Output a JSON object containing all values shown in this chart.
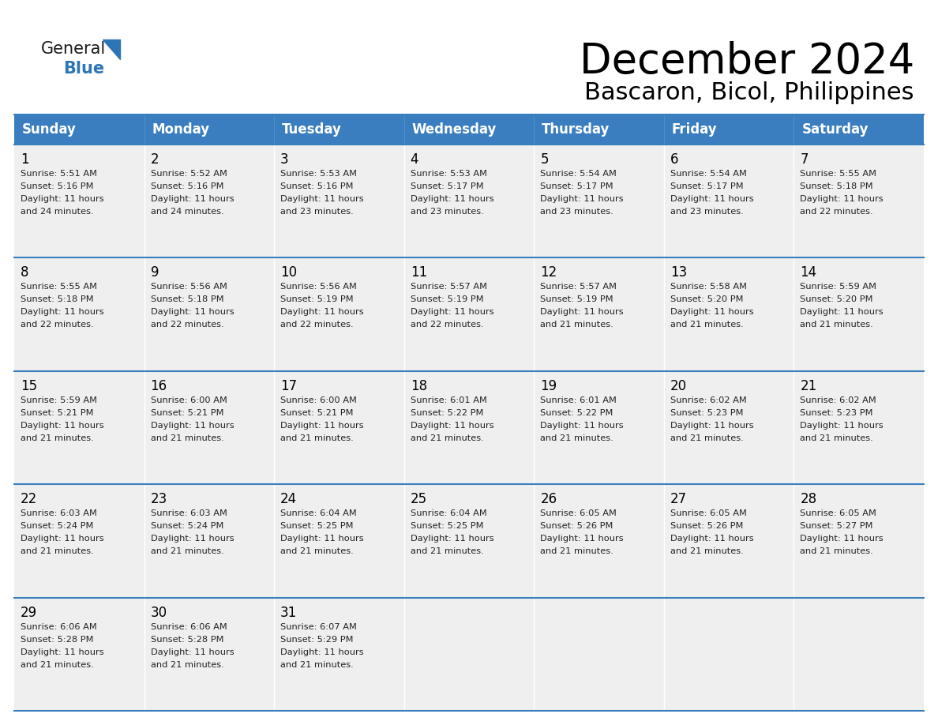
{
  "title": "December 2024",
  "subtitle": "Bascaron, Bicol, Philippines",
  "header_color": "#3a7ebf",
  "header_text_color": "#ffffff",
  "cell_bg_color": "#efefef",
  "border_color": "#3a7ebf",
  "days_of_week": [
    "Sunday",
    "Monday",
    "Tuesday",
    "Wednesday",
    "Thursday",
    "Friday",
    "Saturday"
  ],
  "weeks": [
    [
      {
        "day": 1,
        "sunrise": "5:51 AM",
        "sunset": "5:16 PM",
        "daylight_min": "24"
      },
      {
        "day": 2,
        "sunrise": "5:52 AM",
        "sunset": "5:16 PM",
        "daylight_min": "24"
      },
      {
        "day": 3,
        "sunrise": "5:53 AM",
        "sunset": "5:16 PM",
        "daylight_min": "23"
      },
      {
        "day": 4,
        "sunrise": "5:53 AM",
        "sunset": "5:17 PM",
        "daylight_min": "23"
      },
      {
        "day": 5,
        "sunrise": "5:54 AM",
        "sunset": "5:17 PM",
        "daylight_min": "23"
      },
      {
        "day": 6,
        "sunrise": "5:54 AM",
        "sunset": "5:17 PM",
        "daylight_min": "23"
      },
      {
        "day": 7,
        "sunrise": "5:55 AM",
        "sunset": "5:18 PM",
        "daylight_min": "22"
      }
    ],
    [
      {
        "day": 8,
        "sunrise": "5:55 AM",
        "sunset": "5:18 PM",
        "daylight_min": "22"
      },
      {
        "day": 9,
        "sunrise": "5:56 AM",
        "sunset": "5:18 PM",
        "daylight_min": "22"
      },
      {
        "day": 10,
        "sunrise": "5:56 AM",
        "sunset": "5:19 PM",
        "daylight_min": "22"
      },
      {
        "day": 11,
        "sunrise": "5:57 AM",
        "sunset": "5:19 PM",
        "daylight_min": "22"
      },
      {
        "day": 12,
        "sunrise": "5:57 AM",
        "sunset": "5:19 PM",
        "daylight_min": "21"
      },
      {
        "day": 13,
        "sunrise": "5:58 AM",
        "sunset": "5:20 PM",
        "daylight_min": "21"
      },
      {
        "day": 14,
        "sunrise": "5:59 AM",
        "sunset": "5:20 PM",
        "daylight_min": "21"
      }
    ],
    [
      {
        "day": 15,
        "sunrise": "5:59 AM",
        "sunset": "5:21 PM",
        "daylight_min": "21"
      },
      {
        "day": 16,
        "sunrise": "6:00 AM",
        "sunset": "5:21 PM",
        "daylight_min": "21"
      },
      {
        "day": 17,
        "sunrise": "6:00 AM",
        "sunset": "5:21 PM",
        "daylight_min": "21"
      },
      {
        "day": 18,
        "sunrise": "6:01 AM",
        "sunset": "5:22 PM",
        "daylight_min": "21"
      },
      {
        "day": 19,
        "sunrise": "6:01 AM",
        "sunset": "5:22 PM",
        "daylight_min": "21"
      },
      {
        "day": 20,
        "sunrise": "6:02 AM",
        "sunset": "5:23 PM",
        "daylight_min": "21"
      },
      {
        "day": 21,
        "sunrise": "6:02 AM",
        "sunset": "5:23 PM",
        "daylight_min": "21"
      }
    ],
    [
      {
        "day": 22,
        "sunrise": "6:03 AM",
        "sunset": "5:24 PM",
        "daylight_min": "21"
      },
      {
        "day": 23,
        "sunrise": "6:03 AM",
        "sunset": "5:24 PM",
        "daylight_min": "21"
      },
      {
        "day": 24,
        "sunrise": "6:04 AM",
        "sunset": "5:25 PM",
        "daylight_min": "21"
      },
      {
        "day": 25,
        "sunrise": "6:04 AM",
        "sunset": "5:25 PM",
        "daylight_min": "21"
      },
      {
        "day": 26,
        "sunrise": "6:05 AM",
        "sunset": "5:26 PM",
        "daylight_min": "21"
      },
      {
        "day": 27,
        "sunrise": "6:05 AM",
        "sunset": "5:26 PM",
        "daylight_min": "21"
      },
      {
        "day": 28,
        "sunrise": "6:05 AM",
        "sunset": "5:27 PM",
        "daylight_min": "21"
      }
    ],
    [
      {
        "day": 29,
        "sunrise": "6:06 AM",
        "sunset": "5:28 PM",
        "daylight_min": "21"
      },
      {
        "day": 30,
        "sunrise": "6:06 AM",
        "sunset": "5:28 PM",
        "daylight_min": "21"
      },
      {
        "day": 31,
        "sunrise": "6:07 AM",
        "sunset": "5:29 PM",
        "daylight_min": "21"
      },
      null,
      null,
      null,
      null
    ]
  ],
  "logo_general_color": "#1a1a1a",
  "logo_blue_color": "#2e75b6",
  "title_fontsize": 38,
  "subtitle_fontsize": 22,
  "header_fontsize": 12,
  "day_num_fontsize": 12,
  "cell_text_fontsize": 8.2
}
